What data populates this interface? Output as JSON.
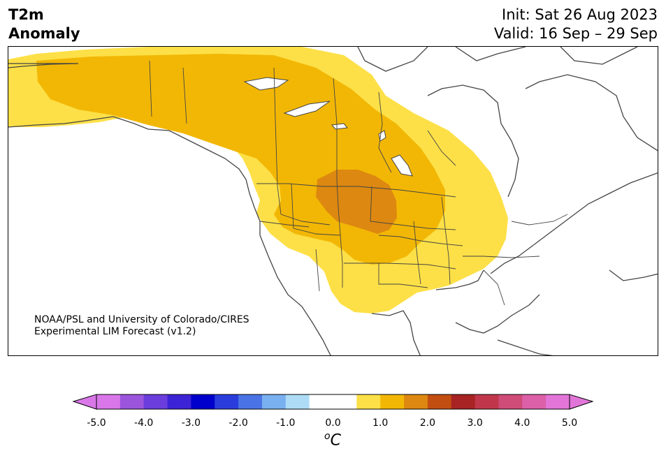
{
  "header": {
    "variable": "T2m",
    "subtitle": "Anomaly",
    "init": "Init: Sat 26 Aug 2023",
    "valid": "Valid: 16 Sep – 29 Sep"
  },
  "credit": {
    "line1": "NOAA/PSL and University of Colorado/CIRES",
    "line2": "Experimental LIM Forecast (v1.2)"
  },
  "colorbar": {
    "unit_symbol": "o",
    "unit_letter": "C",
    "ticks": [
      "-5.0",
      "-4.0",
      "-3.0",
      "-2.0",
      "-1.0",
      "0.0",
      "1.0",
      "2.0",
      "3.0",
      "4.0",
      "5.0"
    ],
    "colors": [
      "#d977e8",
      "#9b55dd",
      "#6a3ddc",
      "#3d23d6",
      "#0000cc",
      "#2a3ddc",
      "#4a73e6",
      "#79b0ef",
      "#aedcf7",
      "#ffffff",
      "#ffffff",
      "#fde047",
      "#f2b705",
      "#dd8810",
      "#c24e12",
      "#a82323",
      "#c0374b",
      "#cf4b78",
      "#dc60a8",
      "#e276d8"
    ]
  },
  "legend_colors": {
    "anomaly_0_5_to_1_0": "#fde047",
    "anomaly_1_0_to_1_5": "#f2b705",
    "anomaly_1_5_to_2_0": "#dd8810"
  }
}
